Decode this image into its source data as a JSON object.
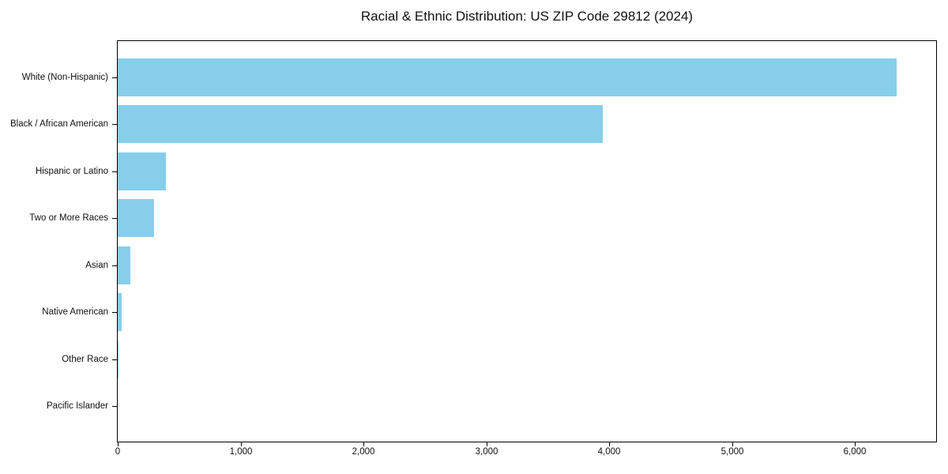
{
  "chart_data": {
    "type": "bar",
    "orientation": "horizontal",
    "title": "Racial & Ethnic Distribution: US ZIP Code 29812 (2024)",
    "categories": [
      "White (Non-Hispanic)",
      "Black / African American",
      "Hispanic or Latino",
      "Two or More Races",
      "Asian",
      "Native American",
      "Other Race",
      "Pacific Islander"
    ],
    "values": [
      6340,
      3950,
      390,
      295,
      105,
      30,
      8,
      0
    ],
    "xlabel": "",
    "ylabel": "",
    "xlim": [
      0,
      6660
    ],
    "xticks": [
      0,
      1000,
      2000,
      3000,
      4000,
      5000,
      6000
    ],
    "xtick_labels": [
      "0",
      "1,000",
      "2,000",
      "3,000",
      "4,000",
      "5,000",
      "6,000"
    ],
    "bar_color": "#87CEEB",
    "frame_color": "#000000",
    "text_color": "#111111",
    "grid": false,
    "legend": null
  }
}
